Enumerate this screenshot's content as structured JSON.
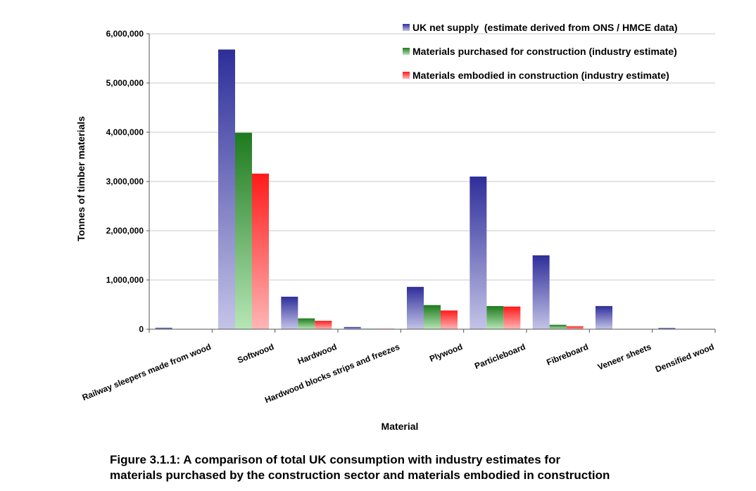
{
  "chart_data": {
    "type": "bar",
    "ylabel": "Tonnes of timber materials",
    "xlabel": "Material",
    "ylim": [
      0,
      6000000
    ],
    "yticks": [
      0,
      1000000,
      2000000,
      3000000,
      4000000,
      5000000,
      6000000
    ],
    "ytick_labels": [
      "0",
      "1,000,000",
      "2,000,000",
      "3,000,000",
      "4,000,000",
      "5,000,000",
      "6,000,000"
    ],
    "grid": true,
    "legend_position": "top-right",
    "categories": [
      "Railway sleepers made from wood",
      "Softwood",
      "Hardwood",
      "Hardwood blocks strips and freezes",
      "Plywood",
      "Particleboard",
      "Fibreboard",
      "Veneer sheets",
      "Densified wood"
    ],
    "series": [
      {
        "name": "UK net supply  (estimate derived from ONS / HMCE data)",
        "color_top": "#2e2e9a",
        "color_bottom": "#c4c4e8",
        "values": [
          30000,
          5680000,
          660000,
          45000,
          860000,
          3100000,
          1500000,
          470000,
          25000
        ]
      },
      {
        "name": "Materials purchased for construction (industry estimate)",
        "color_top": "#1e7a1e",
        "color_bottom": "#b6e6b6",
        "values": [
          5000,
          3990000,
          220000,
          10000,
          490000,
          470000,
          90000,
          0,
          0
        ]
      },
      {
        "name": "Materials embodied in construction (industry estimate)",
        "color_top": "#ff1a1a",
        "color_bottom": "#ffb6b6",
        "values": [
          5000,
          3160000,
          170000,
          10000,
          380000,
          460000,
          60000,
          0,
          0
        ]
      }
    ]
  },
  "caption": {
    "line1": "Figure 3.1.1: A comparison of total UK consumption with industry estimates for",
    "line2": "materials purchased by the construction sector and materials embodied in construction"
  }
}
